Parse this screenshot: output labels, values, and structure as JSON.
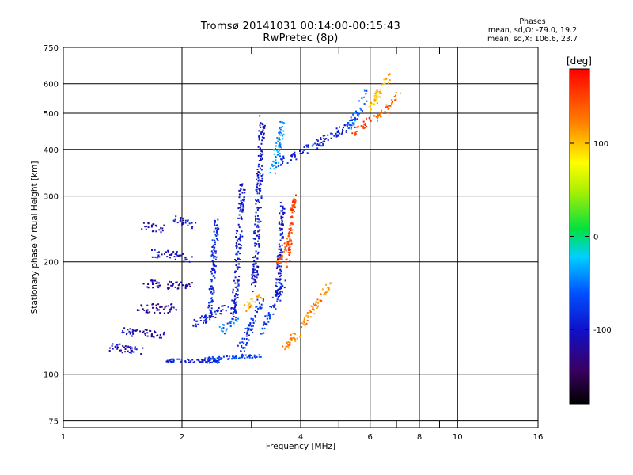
{
  "chart_data": {
    "type": "scatter",
    "title": "Tromsø 20141031 00:14:00-00:15:43",
    "subtitle": "RwPretec (8p)",
    "xlabel": "Frequency [MHz]",
    "ylabel": "Stationary phase Virtual Height [km]",
    "x_scale": "log",
    "y_scale": "log",
    "xlim": [
      1,
      16
    ],
    "ylim": [
      72,
      750
    ],
    "x_ticks": [
      "1",
      "2",
      "4",
      "6",
      "8",
      "10",
      "16"
    ],
    "x_tick_values": [
      1,
      2,
      4,
      6,
      8,
      10,
      16
    ],
    "x_minor_ticks": [
      3,
      5,
      7,
      9
    ],
    "y_ticks": [
      "750",
      "600",
      "500",
      "400",
      "300",
      "200",
      "100",
      "75"
    ],
    "y_tick_values": [
      750,
      600,
      500,
      400,
      300,
      200,
      100,
      75
    ],
    "grid": true,
    "colorbar": {
      "label": "[deg]",
      "range": [
        -180,
        180
      ],
      "ticks": [
        "100",
        "0",
        "-100"
      ],
      "tick_values": [
        100,
        0,
        -100
      ]
    },
    "stats_title": "Phases",
    "stats_lines": [
      "mean, sd,O: -79.0, 19.2",
      "mean, sd,X: 106.6, 23.7"
    ],
    "series": [
      {
        "segments": [
          {
            "f": [
              1.3,
              1.6
            ],
            "h": [
              118,
              116
            ],
            "phase": -110,
            "spread": 0.05
          },
          {
            "f": [
              1.4,
              1.8
            ],
            "h": [
              130,
              128
            ],
            "phase": -115,
            "spread": 0.05
          },
          {
            "f": [
              1.55,
              1.95
            ],
            "h": [
              150,
              150
            ],
            "phase": -125,
            "spread": 0.06
          },
          {
            "f": [
              1.6,
              2.1
            ],
            "h": [
              175,
              172
            ],
            "phase": -120,
            "spread": 0.05
          },
          {
            "f": [
              1.6,
              1.8
            ],
            "h": [
              250,
              245
            ],
            "phase": -110,
            "spread": 0.05
          },
          {
            "f": [
              1.7,
              2.1
            ],
            "h": [
              210,
              205
            ],
            "phase": -105,
            "spread": 0.06
          },
          {
            "f": [
              1.9,
              2.15
            ],
            "h": [
              262,
              250
            ],
            "phase": -100,
            "spread": 0.04
          },
          {
            "f": [
              1.8,
              2.5
            ],
            "h": [
              109,
              108
            ],
            "phase": -90,
            "spread": 0.02
          },
          {
            "f": [
              2.1,
              2.6
            ],
            "h": [
              135,
              150
            ],
            "phase": -95,
            "spread": 0.05
          },
          {
            "f": [
              2.35,
              2.45
            ],
            "h": [
              140,
              260
            ],
            "phase": -85,
            "spread": 0.05
          },
          {
            "f": [
              2.3,
              3.2
            ],
            "h": [
              110,
              112
            ],
            "phase": -70,
            "spread": 0.02
          },
          {
            "f": [
              2.5,
              2.75
            ],
            "h": [
              130,
              140
            ],
            "phase": -50,
            "spread": 0.05
          },
          {
            "f": [
              2.7,
              2.85
            ],
            "h": [
              140,
              320
            ],
            "phase": -95,
            "spread": 0.06
          },
          {
            "f": [
              2.8,
              3.2
            ],
            "h": [
              115,
              160
            ],
            "phase": -80,
            "spread": 0.06
          },
          {
            "f": [
              3.05,
              3.2
            ],
            "h": [
              170,
              480
            ],
            "phase": -100,
            "spread": 0.06
          },
          {
            "f": [
              2.9,
              3.2
            ],
            "h": [
              150,
              165
            ],
            "phase": 110,
            "spread": 0.04
          },
          {
            "f": [
              3.2,
              3.6
            ],
            "h": [
              130,
              175
            ],
            "phase": -75,
            "spread": 0.06
          },
          {
            "f": [
              3.5,
              3.6
            ],
            "h": [
              160,
              290
            ],
            "phase": -100,
            "spread": 0.05
          },
          {
            "f": [
              3.4,
              3.6
            ],
            "h": [
              340,
              470
            ],
            "phase": -40,
            "spread": 0.06
          },
          {
            "f": [
              3.55,
              5.5
            ],
            "h": [
              368,
              470
            ],
            "phase": -90,
            "spread": 0.05
          },
          {
            "f": [
              5.3,
              5.9
            ],
            "h": [
              460,
              560
            ],
            "phase": -60,
            "spread": 0.06
          },
          {
            "f": [
              3.7,
              3.85
            ],
            "h": [
              195,
              300
            ],
            "phase": 150,
            "spread": 0.04
          },
          {
            "f": [
              3.5,
              3.8
            ],
            "h": [
              200,
              235
            ],
            "phase": 140,
            "spread": 0.04
          },
          {
            "f": [
              3.6,
              4.0
            ],
            "h": [
              118,
              130
            ],
            "phase": 125,
            "spread": 0.05
          },
          {
            "f": [
              4.0,
              4.8
            ],
            "h": [
              135,
              175
            ],
            "phase": 120,
            "spread": 0.05
          },
          {
            "f": [
              5.4,
              6.0
            ],
            "h": [
              440,
              480
            ],
            "phase": 150,
            "spread": 0.04
          },
          {
            "f": [
              6.0,
              6.8
            ],
            "h": [
              520,
              640
            ],
            "phase": 105,
            "spread": 0.05
          },
          {
            "f": [
              6.2,
              7.1
            ],
            "h": [
              480,
              560
            ],
            "phase": 135,
            "spread": 0.05
          }
        ]
      }
    ]
  }
}
